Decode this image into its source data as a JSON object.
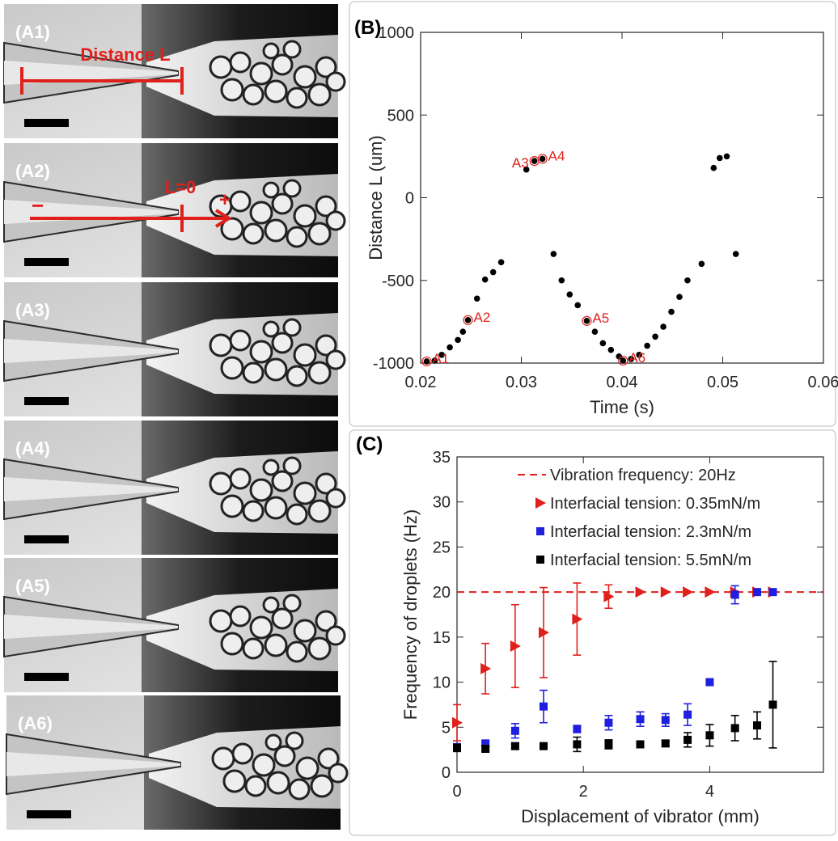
{
  "images": [
    {
      "label": "(A1)",
      "annotations": [
        "Distance L"
      ]
    },
    {
      "label": "(A2)",
      "annotations": [
        "L=0",
        "−",
        "+"
      ]
    },
    {
      "label": "(A3)"
    },
    {
      "label": "(A4)"
    },
    {
      "label": "(A5)"
    },
    {
      "label": "(A6)"
    }
  ],
  "chart_data": [
    {
      "type": "scatter",
      "panel_label": "(B)",
      "x_label": "Time (s)",
      "y_label": "Distance L (um)",
      "xlim": [
        0.02,
        0.06
      ],
      "xticks": [
        0.02,
        0.03,
        0.04,
        0.05,
        0.06
      ],
      "ylim": [
        -1000,
        1000
      ],
      "yticks": [
        -1000,
        -500,
        0,
        500,
        1000
      ],
      "series": [
        {
          "color": "#000000",
          "marker": "circle",
          "x": [
            0.0206,
            0.0214,
            0.0221,
            0.0229,
            0.0237,
            0.0242,
            0.0247,
            0.0256,
            0.0264,
            0.0272,
            0.028,
            0.0305,
            0.0313,
            0.0321,
            0.0332,
            0.034,
            0.0348,
            0.0356,
            0.0365,
            0.0373,
            0.0381,
            0.0389,
            0.0397,
            0.0401,
            0.0409,
            0.0417,
            0.0425,
            0.0433,
            0.0441,
            0.0449,
            0.0457,
            0.0465,
            0.0479,
            0.0491,
            0.0497,
            0.0504,
            0.0513
          ],
          "values": [
            -990,
            -985,
            -950,
            -905,
            -860,
            -810,
            -740,
            -610,
            -495,
            -450,
            -390,
            170,
            222,
            235,
            -340,
            -500,
            -585,
            -650,
            -745,
            -810,
            -880,
            -920,
            -960,
            -985,
            -975,
            -950,
            -895,
            -840,
            -780,
            -690,
            -600,
            -500,
            -400,
            180,
            240,
            250,
            -340
          ]
        }
      ],
      "annotations": [
        {
          "text": "A1",
          "x": 0.0206,
          "y": -990,
          "color": "#e0201b"
        },
        {
          "text": "A2",
          "x": 0.0247,
          "y": -740,
          "color": "#e0201b"
        },
        {
          "text": "A3",
          "x": 0.0313,
          "y": 222,
          "color": "#e0201b"
        },
        {
          "text": "A4",
          "x": 0.0321,
          "y": 235,
          "color": "#e0201b"
        },
        {
          "text": "A5",
          "x": 0.0365,
          "y": -745,
          "color": "#e0201b"
        },
        {
          "text": "A6",
          "x": 0.0401,
          "y": -985,
          "color": "#e0201b"
        }
      ]
    },
    {
      "type": "scatter",
      "panel_label": "(C)",
      "x_label": "Displacement of vibrator (mm)",
      "y_label": "Frequency of droplets (Hz)",
      "xlim": [
        0,
        5.8
      ],
      "xticks": [
        0,
        2,
        4
      ],
      "ylim": [
        0,
        35
      ],
      "yticks": [
        0,
        5,
        10,
        15,
        20,
        25,
        30,
        35
      ],
      "legend": "upper right",
      "reference_lines": [
        {
          "name": "Vibration frequency: 20Hz",
          "value": 20,
          "color": "#e0201b",
          "style": "dashed"
        }
      ],
      "series": [
        {
          "name": "Interfacial tension: 0.35mN/m",
          "color": "#e0201b",
          "marker": "triangle-right",
          "x": [
            0,
            0.45,
            0.92,
            1.37,
            1.9,
            2.4,
            2.9,
            3.3,
            3.65,
            4.0,
            4.4,
            4.75,
            5.0
          ],
          "values": [
            5.5,
            11.5,
            14,
            15.5,
            17,
            19.5,
            20,
            20,
            20,
            20,
            20,
            20,
            20
          ],
          "errors": [
            2,
            2.8,
            4.6,
            5,
            4,
            1.3,
            0,
            0,
            0,
            0,
            0,
            0,
            0
          ]
        },
        {
          "name": "Interfacial tension: 2.3mN/m",
          "color": "#1f1fe0",
          "marker": "square",
          "x": [
            0,
            0.45,
            0.92,
            1.37,
            1.9,
            2.4,
            2.9,
            3.3,
            3.65,
            4.0,
            4.4,
            4.75,
            5.0
          ],
          "values": [
            2.8,
            3.2,
            4.6,
            7.3,
            4.8,
            5.5,
            5.9,
            5.8,
            6.4,
            10,
            19.7,
            20,
            20
          ],
          "errors": [
            0.3,
            0.3,
            0.8,
            1.8,
            0.4,
            0.8,
            0.8,
            0.7,
            1.2,
            0.2,
            1,
            0.3,
            0.3
          ]
        },
        {
          "name": "Interfacial tension: 5.5mN/m",
          "color": "#000000",
          "marker": "square",
          "x": [
            0,
            0.45,
            0.92,
            1.37,
            1.9,
            2.4,
            2.9,
            3.3,
            3.65,
            4.0,
            4.4,
            4.75,
            5.0
          ],
          "values": [
            2.7,
            2.6,
            2.9,
            2.9,
            3.1,
            3.1,
            3.1,
            3.2,
            3.6,
            4.1,
            4.9,
            5.2,
            7.5
          ],
          "errors": [
            0.4,
            0.3,
            0.3,
            0.3,
            0.8,
            0.5,
            0.3,
            0.3,
            0.8,
            1.2,
            1.4,
            1.5,
            4.8
          ]
        }
      ]
    }
  ]
}
